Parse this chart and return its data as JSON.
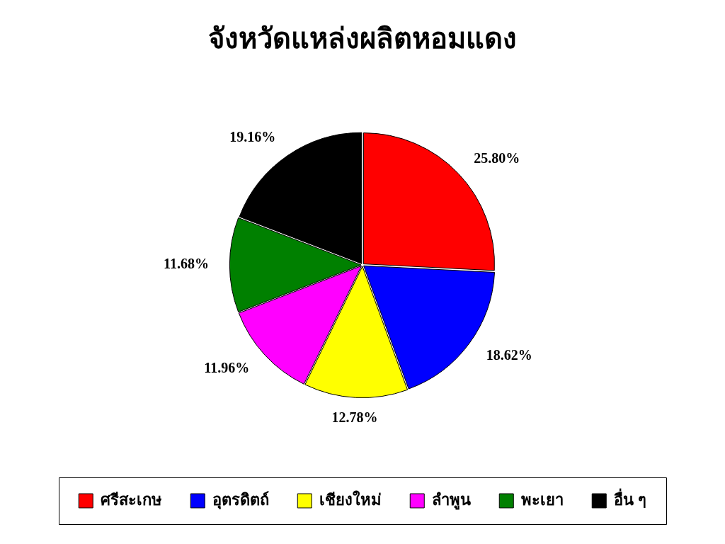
{
  "chart_data": {
    "type": "pie",
    "title": "จังหวัดแหล่งผลิตหอมแดง",
    "categories": [
      "ศรีสะเกษ",
      "อุตรดิตถ์",
      "เชียงใหม่",
      "ลำพูน",
      "พะเยา",
      "อื่น ๆ"
    ],
    "values": [
      25.8,
      18.62,
      12.78,
      11.96,
      11.68,
      19.16
    ],
    "value_labels": [
      "25.80%",
      "18.62%",
      "12.78%",
      "11.96%",
      "11.68%",
      "19.16%"
    ],
    "colors": [
      "#ff0000",
      "#0000ff",
      "#ffff00",
      "#ff00ff",
      "#008000",
      "#000000"
    ],
    "legend": "bottom"
  }
}
